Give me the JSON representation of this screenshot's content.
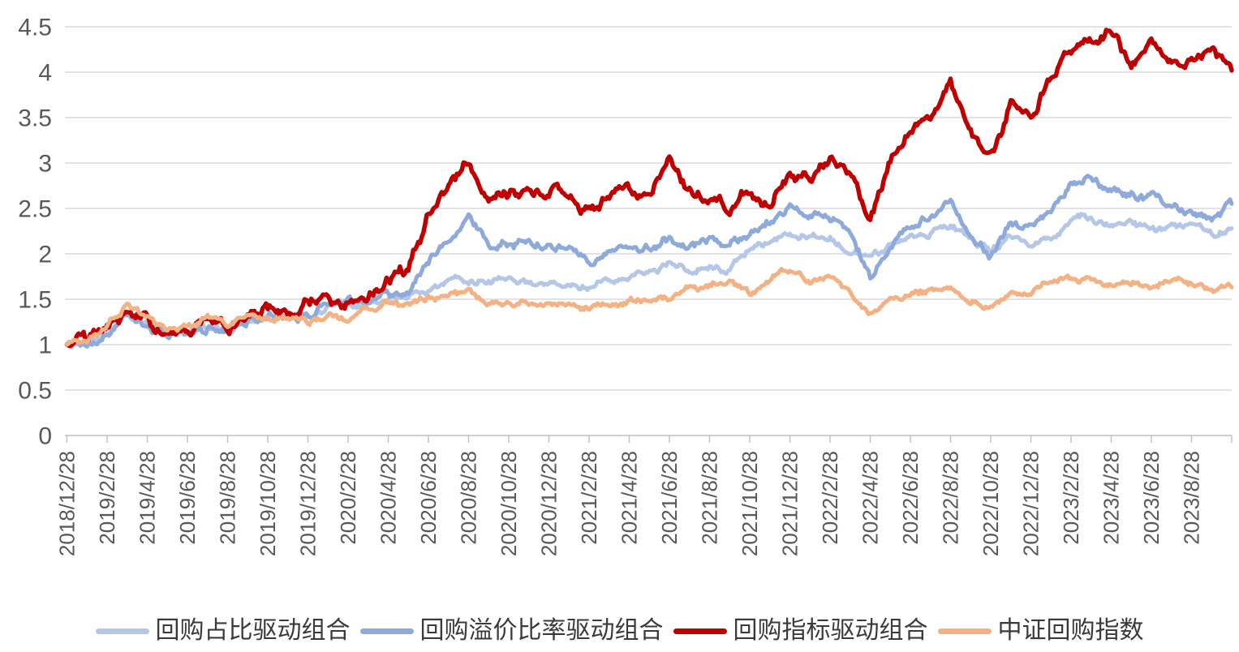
{
  "page": {
    "background": "#FFFFFF",
    "title": ""
  },
  "chart_data": {
    "type": "line",
    "title": "",
    "xlabel": "",
    "ylabel": "",
    "x_axis": {
      "tick_labels": [
        "2018/12/28",
        "2019/2/28",
        "2019/4/28",
        "2019/6/28",
        "2019/8/28",
        "2019/10/28",
        "2019/12/28",
        "2020/2/28",
        "2020/4/28",
        "2020/6/28",
        "2020/8/28",
        "2020/10/28",
        "2020/12/28",
        "2021/2/28",
        "2021/4/28",
        "2021/6/28",
        "2021/8/28",
        "2021/10/28",
        "2021/12/28",
        "2022/2/28",
        "2022/4/28",
        "2022/6/28",
        "2022/8/28",
        "2022/10/28",
        "2022/12/28",
        "2023/2/28",
        "2023/4/28",
        "2023/6/28",
        "2023/8/28"
      ],
      "tick_interval": "2 months",
      "label_rotation_deg": -90
    },
    "y_axis": {
      "tick_labels": [
        "0",
        "0.5",
        "1",
        "1.5",
        "2",
        "2.5",
        "3",
        "3.5",
        "4",
        "4.5"
      ],
      "min": 0,
      "max": 4.5,
      "step": 0.5
    },
    "ylim": [
      0,
      4.5
    ],
    "grid": {
      "horizontal": true,
      "vertical": false,
      "color": "#D9D9D9"
    },
    "axis_color": "#BFBFBF",
    "label_color": "#595959",
    "legend_position": "bottom",
    "sampling_note": "net-value curves normalized to 1.0 at 2018/12/28; values sampled monthly from 2018/12/28 to 2023/10/28",
    "series": [
      {
        "id": "buyback-share-driven-portfolio",
        "name": "回购占比驱动组合",
        "color": "#B4C7E7",
        "stroke_width": 5,
        "values": [
          1.0,
          1.01,
          1.13,
          1.36,
          1.25,
          1.12,
          1.11,
          1.21,
          1.16,
          1.28,
          1.31,
          1.32,
          1.31,
          1.43,
          1.45,
          1.44,
          1.47,
          1.52,
          1.6,
          1.7,
          1.73,
          1.7,
          1.68,
          1.67,
          1.63,
          1.65,
          1.62,
          1.68,
          1.73,
          1.8,
          1.85,
          1.83,
          1.88,
          1.85,
          2.03,
          2.12,
          2.22,
          2.15,
          2.18,
          2.05,
          1.93,
          2.08,
          2.18,
          2.25,
          2.32,
          2.15,
          2.05,
          2.2,
          2.1,
          2.2,
          2.35,
          2.42,
          2.3,
          2.32,
          2.3,
          2.28,
          2.3,
          2.22,
          2.28
        ]
      },
      {
        "id": "buyback-premium-ratio-driven-portfolio",
        "name": "回购溢价比率驱动组合",
        "color": "#8EAADB",
        "stroke_width": 5,
        "values": [
          1.0,
          1.01,
          1.14,
          1.37,
          1.26,
          1.12,
          1.11,
          1.22,
          1.16,
          1.28,
          1.32,
          1.33,
          1.32,
          1.45,
          1.48,
          1.46,
          1.5,
          1.6,
          1.95,
          2.2,
          2.38,
          2.08,
          2.15,
          2.15,
          2.1,
          2.12,
          1.95,
          2.0,
          2.05,
          2.1,
          2.16,
          2.12,
          2.18,
          2.1,
          2.25,
          2.35,
          2.55,
          2.42,
          2.42,
          2.25,
          1.75,
          2.1,
          2.32,
          2.42,
          2.6,
          2.2,
          2.0,
          2.35,
          2.25,
          2.45,
          2.72,
          2.88,
          2.65,
          2.62,
          2.6,
          2.48,
          2.45,
          2.38,
          2.55
        ]
      },
      {
        "id": "buyback-indicator-driven-portfolio",
        "name": "回购指标驱动组合",
        "color": "#C00000",
        "stroke_width": 5.5,
        "values": [
          1.0,
          1.02,
          1.16,
          1.4,
          1.28,
          1.14,
          1.13,
          1.24,
          1.18,
          1.32,
          1.36,
          1.38,
          1.48,
          1.53,
          1.5,
          1.53,
          1.72,
          1.78,
          2.45,
          2.75,
          3.02,
          2.65,
          2.7,
          2.72,
          2.68,
          2.72,
          2.48,
          2.7,
          2.7,
          2.62,
          3.02,
          2.7,
          2.62,
          2.5,
          2.66,
          2.58,
          2.92,
          2.8,
          3.0,
          2.9,
          2.3,
          3.05,
          3.45,
          3.55,
          3.85,
          3.4,
          3.1,
          3.65,
          3.55,
          3.95,
          4.25,
          4.42,
          4.45,
          4.0,
          4.28,
          4.1,
          4.12,
          4.22,
          4.02
        ]
      },
      {
        "id": "csi-buyback-index",
        "name": "中证回购指数",
        "color": "#F4B183",
        "stroke_width": 5,
        "values": [
          1.0,
          1.03,
          1.2,
          1.45,
          1.33,
          1.18,
          1.16,
          1.27,
          1.22,
          1.32,
          1.34,
          1.3,
          1.25,
          1.35,
          1.28,
          1.38,
          1.45,
          1.4,
          1.48,
          1.55,
          1.57,
          1.48,
          1.46,
          1.46,
          1.43,
          1.46,
          1.4,
          1.48,
          1.48,
          1.5,
          1.52,
          1.62,
          1.65,
          1.66,
          1.55,
          1.7,
          1.85,
          1.7,
          1.72,
          1.55,
          1.35,
          1.52,
          1.55,
          1.6,
          1.63,
          1.5,
          1.43,
          1.55,
          1.55,
          1.68,
          1.72,
          1.72,
          1.68,
          1.7,
          1.67,
          1.7,
          1.68,
          1.6,
          1.63
        ]
      }
    ]
  }
}
